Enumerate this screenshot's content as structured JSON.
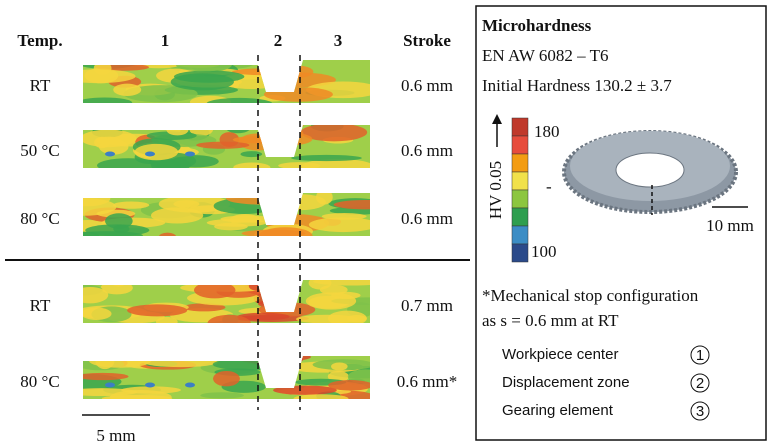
{
  "header": {
    "temp": "Temp.",
    "zones": [
      "1",
      "2",
      "3"
    ],
    "stroke": "Stroke"
  },
  "rows": [
    {
      "temp": "RT",
      "stroke": "0.6 mm"
    },
    {
      "temp": "50 °C",
      "stroke": "0.6 mm"
    },
    {
      "temp": "80 °C",
      "stroke": "0.6 mm"
    },
    {
      "temp": "RT",
      "stroke": "0.7 mm"
    },
    {
      "temp": "80 °C",
      "stroke": "0.6 mm*"
    }
  ],
  "scale_bar": "5 mm",
  "legend": {
    "title": "Microhardness",
    "material": "EN AW 6082 – T6",
    "initial": "Initial Hardness 130.2 ± 3.7",
    "colorbar_label": "HV 0.05",
    "colorbar_ticks": [
      "180",
      "-",
      "100"
    ],
    "part_scale": "10 mm",
    "note": [
      "*Mechanical stop configuration",
      "as s = 0.6 mm at RT"
    ],
    "zones": [
      {
        "label": "Workpiece center",
        "num": "1"
      },
      {
        "label": "Displacement zone",
        "num": "2"
      },
      {
        "label": "Gearing element",
        "num": "3"
      }
    ]
  }
}
